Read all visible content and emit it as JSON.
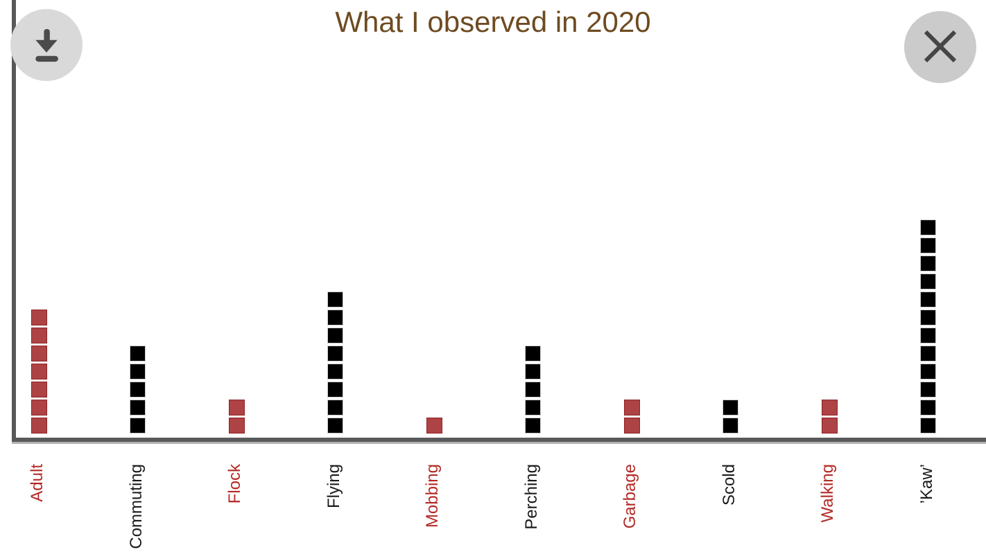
{
  "header": {
    "title": "What I observed in 2020",
    "title_color": "#6d4b21"
  },
  "toolbar": {
    "download_icon": "download-icon",
    "close_icon": "close-icon"
  },
  "chart_data": {
    "type": "bar",
    "style": "waffle-stack (1 square = 1 unit)",
    "title": "What I observed in 2020",
    "xlabel": "",
    "ylabel": "",
    "grid": false,
    "legend": false,
    "ylim": [
      0,
      12
    ],
    "categories": [
      "Adult",
      "Commuting",
      "Flock",
      "Flying",
      "Mobbing",
      "Perching",
      "Garbage",
      "Scold",
      "Walking",
      "’Kaw’"
    ],
    "values": [
      7,
      5,
      2,
      8,
      1,
      5,
      2,
      2,
      2,
      12
    ],
    "bar_colors": [
      "#ad4345",
      "#000000",
      "#ad4345",
      "#000000",
      "#ad4345",
      "#000000",
      "#ad4345",
      "#000000",
      "#ad4345",
      "#000000"
    ],
    "label_colors": [
      "#b32a26",
      "#1a1a1a",
      "#b32a26",
      "#1a1a1a",
      "#b32a26",
      "#1a1a1a",
      "#b32a26",
      "#1a1a1a",
      "#b32a26",
      "#1a1a1a"
    ],
    "colors": {
      "red": "#ad4345",
      "black": "#000000",
      "axis": "#58595b",
      "axis_shadow": "#b2b2b2",
      "title_brown": "#6d4b21"
    }
  }
}
